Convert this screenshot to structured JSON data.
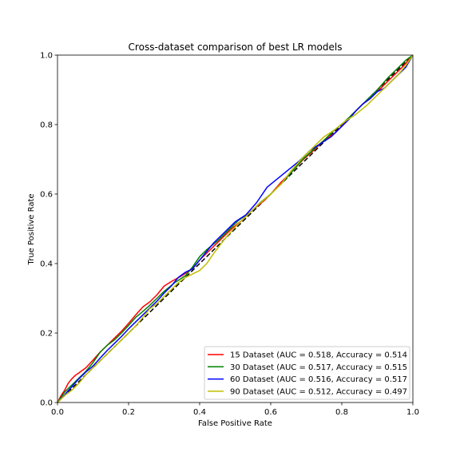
{
  "chart_data": {
    "type": "line",
    "title": "Cross-dataset comparison of best LR models",
    "xlabel": "False Positive Rate",
    "ylabel": "True Positive Rate",
    "xlim": [
      0.0,
      1.0
    ],
    "ylim": [
      0.0,
      1.0
    ],
    "xticks": [
      "0.0",
      "0.2",
      "0.4",
      "0.6",
      "0.8",
      "1.0"
    ],
    "yticks": [
      "0.0",
      "0.2",
      "0.4",
      "0.6",
      "0.8",
      "1.0"
    ],
    "grid": false,
    "legend_position": "lower right",
    "reference_line": {
      "style": "dashed",
      "color": "#000000",
      "points": [
        [
          0,
          0
        ],
        [
          1,
          1
        ]
      ]
    },
    "series": [
      {
        "name": "15 Dataset (AUC = 0.518, Accuracy = 0.514",
        "color": "#ff0000",
        "points": [
          [
            0,
            0
          ],
          [
            0.01,
            0.02
          ],
          [
            0.02,
            0.035
          ],
          [
            0.03,
            0.055
          ],
          [
            0.04,
            0.068
          ],
          [
            0.05,
            0.078
          ],
          [
            0.06,
            0.085
          ],
          [
            0.08,
            0.1
          ],
          [
            0.1,
            0.122
          ],
          [
            0.12,
            0.145
          ],
          [
            0.14,
            0.165
          ],
          [
            0.16,
            0.185
          ],
          [
            0.18,
            0.205
          ],
          [
            0.2,
            0.228
          ],
          [
            0.22,
            0.252
          ],
          [
            0.24,
            0.275
          ],
          [
            0.26,
            0.29
          ],
          [
            0.28,
            0.31
          ],
          [
            0.3,
            0.335
          ],
          [
            0.32,
            0.348
          ],
          [
            0.35,
            0.365
          ],
          [
            0.38,
            0.385
          ],
          [
            0.4,
            0.41
          ],
          [
            0.43,
            0.44
          ],
          [
            0.46,
            0.47
          ],
          [
            0.49,
            0.5
          ],
          [
            0.52,
            0.525
          ],
          [
            0.55,
            0.555
          ],
          [
            0.58,
            0.58
          ],
          [
            0.6,
            0.6
          ],
          [
            0.63,
            0.635
          ],
          [
            0.66,
            0.665
          ],
          [
            0.69,
            0.698
          ],
          [
            0.72,
            0.725
          ],
          [
            0.75,
            0.755
          ],
          [
            0.78,
            0.775
          ],
          [
            0.8,
            0.795
          ],
          [
            0.83,
            0.83
          ],
          [
            0.86,
            0.86
          ],
          [
            0.88,
            0.875
          ],
          [
            0.91,
            0.905
          ],
          [
            0.94,
            0.935
          ],
          [
            0.97,
            0.965
          ],
          [
            1,
            1
          ]
        ]
      },
      {
        "name": "30 Dataset (AUC = 0.517, Accuracy = 0.515",
        "color": "#008000",
        "points": [
          [
            0,
            0
          ],
          [
            0.02,
            0.03
          ],
          [
            0.04,
            0.05
          ],
          [
            0.06,
            0.07
          ],
          [
            0.08,
            0.09
          ],
          [
            0.1,
            0.115
          ],
          [
            0.12,
            0.145
          ],
          [
            0.14,
            0.165
          ],
          [
            0.16,
            0.18
          ],
          [
            0.18,
            0.2
          ],
          [
            0.2,
            0.222
          ],
          [
            0.22,
            0.245
          ],
          [
            0.24,
            0.262
          ],
          [
            0.26,
            0.28
          ],
          [
            0.28,
            0.3
          ],
          [
            0.3,
            0.32
          ],
          [
            0.33,
            0.345
          ],
          [
            0.36,
            0.365
          ],
          [
            0.38,
            0.39
          ],
          [
            0.4,
            0.42
          ],
          [
            0.42,
            0.44
          ],
          [
            0.45,
            0.465
          ],
          [
            0.48,
            0.495
          ],
          [
            0.51,
            0.525
          ],
          [
            0.54,
            0.545
          ],
          [
            0.57,
            0.575
          ],
          [
            0.6,
            0.6
          ],
          [
            0.63,
            0.63
          ],
          [
            0.66,
            0.665
          ],
          [
            0.69,
            0.7
          ],
          [
            0.72,
            0.728
          ],
          [
            0.75,
            0.755
          ],
          [
            0.78,
            0.785
          ],
          [
            0.81,
            0.81
          ],
          [
            0.84,
            0.84
          ],
          [
            0.87,
            0.87
          ],
          [
            0.9,
            0.9
          ],
          [
            0.93,
            0.935
          ],
          [
            0.96,
            0.965
          ],
          [
            0.98,
            0.985
          ],
          [
            1,
            1
          ]
        ]
      },
      {
        "name": "60 Dataset (AUC = 0.516, Accuracy = 0.517",
        "color": "#0000ff",
        "points": [
          [
            0,
            0
          ],
          [
            0.02,
            0.022
          ],
          [
            0.04,
            0.045
          ],
          [
            0.06,
            0.068
          ],
          [
            0.08,
            0.088
          ],
          [
            0.1,
            0.105
          ],
          [
            0.12,
            0.128
          ],
          [
            0.14,
            0.15
          ],
          [
            0.16,
            0.17
          ],
          [
            0.18,
            0.19
          ],
          [
            0.2,
            0.212
          ],
          [
            0.22,
            0.232
          ],
          [
            0.24,
            0.252
          ],
          [
            0.26,
            0.272
          ],
          [
            0.28,
            0.292
          ],
          [
            0.3,
            0.315
          ],
          [
            0.32,
            0.335
          ],
          [
            0.34,
            0.36
          ],
          [
            0.36,
            0.375
          ],
          [
            0.38,
            0.385
          ],
          [
            0.4,
            0.41
          ],
          [
            0.42,
            0.435
          ],
          [
            0.44,
            0.46
          ],
          [
            0.47,
            0.49
          ],
          [
            0.5,
            0.52
          ],
          [
            0.53,
            0.54
          ],
          [
            0.56,
            0.575
          ],
          [
            0.59,
            0.62
          ],
          [
            0.62,
            0.645
          ],
          [
            0.65,
            0.67
          ],
          [
            0.68,
            0.695
          ],
          [
            0.71,
            0.725
          ],
          [
            0.74,
            0.745
          ],
          [
            0.77,
            0.765
          ],
          [
            0.8,
            0.795
          ],
          [
            0.82,
            0.815
          ],
          [
            0.84,
            0.84
          ],
          [
            0.86,
            0.86
          ],
          [
            0.88,
            0.875
          ],
          [
            0.9,
            0.895
          ],
          [
            0.92,
            0.905
          ],
          [
            0.94,
            0.925
          ],
          [
            0.96,
            0.945
          ],
          [
            0.98,
            0.965
          ],
          [
            1,
            1
          ]
        ]
      },
      {
        "name": "90 Dataset (AUC = 0.512, Accuracy = 0.497",
        "color": "#bfbf00",
        "points": [
          [
            0,
            0
          ],
          [
            0.02,
            0.02
          ],
          [
            0.04,
            0.035
          ],
          [
            0.06,
            0.055
          ],
          [
            0.08,
            0.08
          ],
          [
            0.1,
            0.1
          ],
          [
            0.12,
            0.12
          ],
          [
            0.14,
            0.14
          ],
          [
            0.16,
            0.16
          ],
          [
            0.18,
            0.18
          ],
          [
            0.2,
            0.2
          ],
          [
            0.22,
            0.22
          ],
          [
            0.24,
            0.245
          ],
          [
            0.26,
            0.27
          ],
          [
            0.28,
            0.285
          ],
          [
            0.3,
            0.305
          ],
          [
            0.32,
            0.325
          ],
          [
            0.34,
            0.345
          ],
          [
            0.36,
            0.36
          ],
          [
            0.38,
            0.37
          ],
          [
            0.4,
            0.38
          ],
          [
            0.42,
            0.4
          ],
          [
            0.44,
            0.43
          ],
          [
            0.47,
            0.47
          ],
          [
            0.5,
            0.505
          ],
          [
            0.53,
            0.535
          ],
          [
            0.56,
            0.565
          ],
          [
            0.6,
            0.6
          ],
          [
            0.63,
            0.63
          ],
          [
            0.66,
            0.67
          ],
          [
            0.69,
            0.705
          ],
          [
            0.72,
            0.735
          ],
          [
            0.75,
            0.765
          ],
          [
            0.78,
            0.785
          ],
          [
            0.81,
            0.81
          ],
          [
            0.84,
            0.83
          ],
          [
            0.87,
            0.855
          ],
          [
            0.9,
            0.885
          ],
          [
            0.93,
            0.915
          ],
          [
            0.96,
            0.945
          ],
          [
            0.98,
            0.97
          ],
          [
            1,
            1
          ]
        ]
      }
    ]
  }
}
